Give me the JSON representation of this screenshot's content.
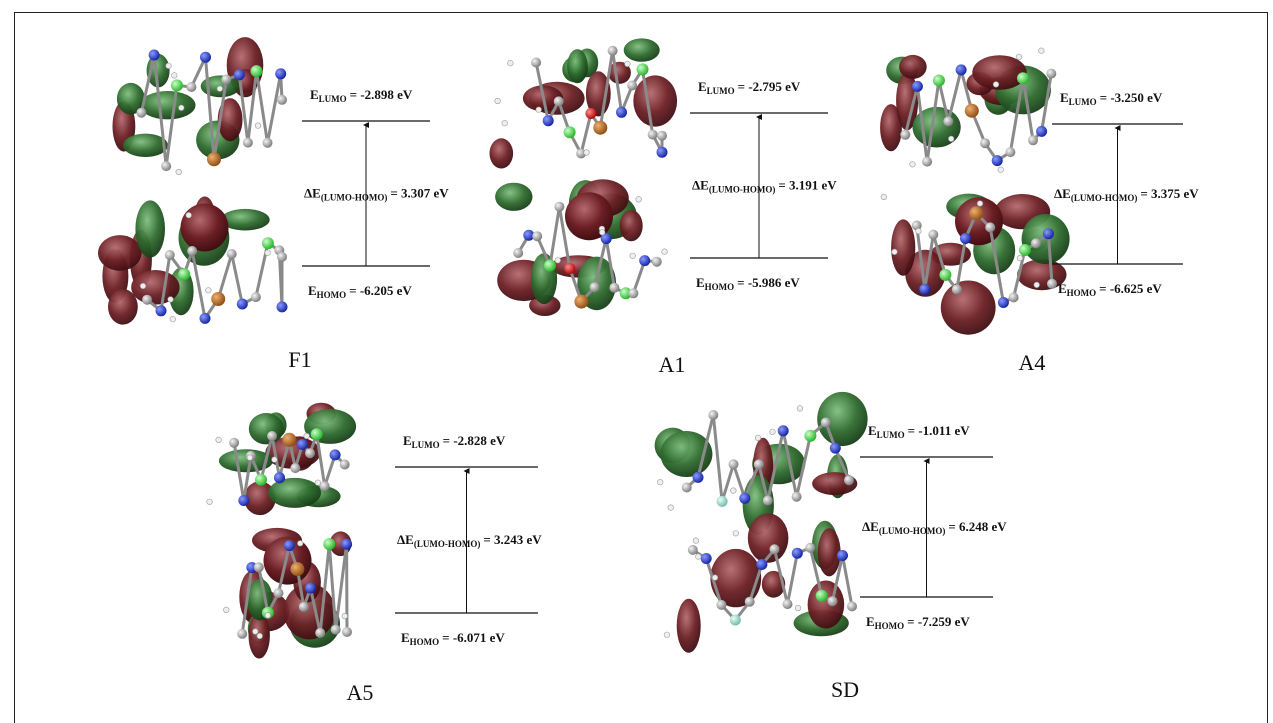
{
  "panels": [
    {
      "id": "F1",
      "name": "F1",
      "lumo": "= -2.898 eV",
      "gap": "= 3.307 eV",
      "homo": "= -6.205 eV"
    },
    {
      "id": "A1",
      "name": "A1",
      "lumo": "= -2.795 eV",
      "gap": "= 3.191 eV",
      "homo": "= -5.986 eV"
    },
    {
      "id": "A4",
      "name": "A4",
      "lumo": "= -3.250 eV",
      "gap": "= 3.375 eV",
      "homo": "= -6.625 eV"
    },
    {
      "id": "A5",
      "name": "A5",
      "lumo": "= -2.828 eV",
      "gap": "= 3.243 eV",
      "homo": "= -6.071 eV"
    },
    {
      "id": "SD",
      "name": "SD",
      "lumo": "= -1.011 eV",
      "gap": "= 6.248 eV",
      "homo": "= -7.259 eV"
    }
  ],
  "labels": {
    "e": "E",
    "delta_e": "ΔE",
    "lumo_sub": "LUMO",
    "homo_sub": "HOMO",
    "gap_sub": "(LUMO-HOMO)"
  },
  "colors": {
    "orbital_green": "#2e6b2e",
    "orbital_maroon": "#6b1f24",
    "chlorine": "#2fd62f",
    "nitrogen": "#1a2fd6",
    "bromine": "#b5651d",
    "carbon": "#9a9a9a",
    "oxygen": "#e01010",
    "fluorine": "#8fd6c8"
  }
}
